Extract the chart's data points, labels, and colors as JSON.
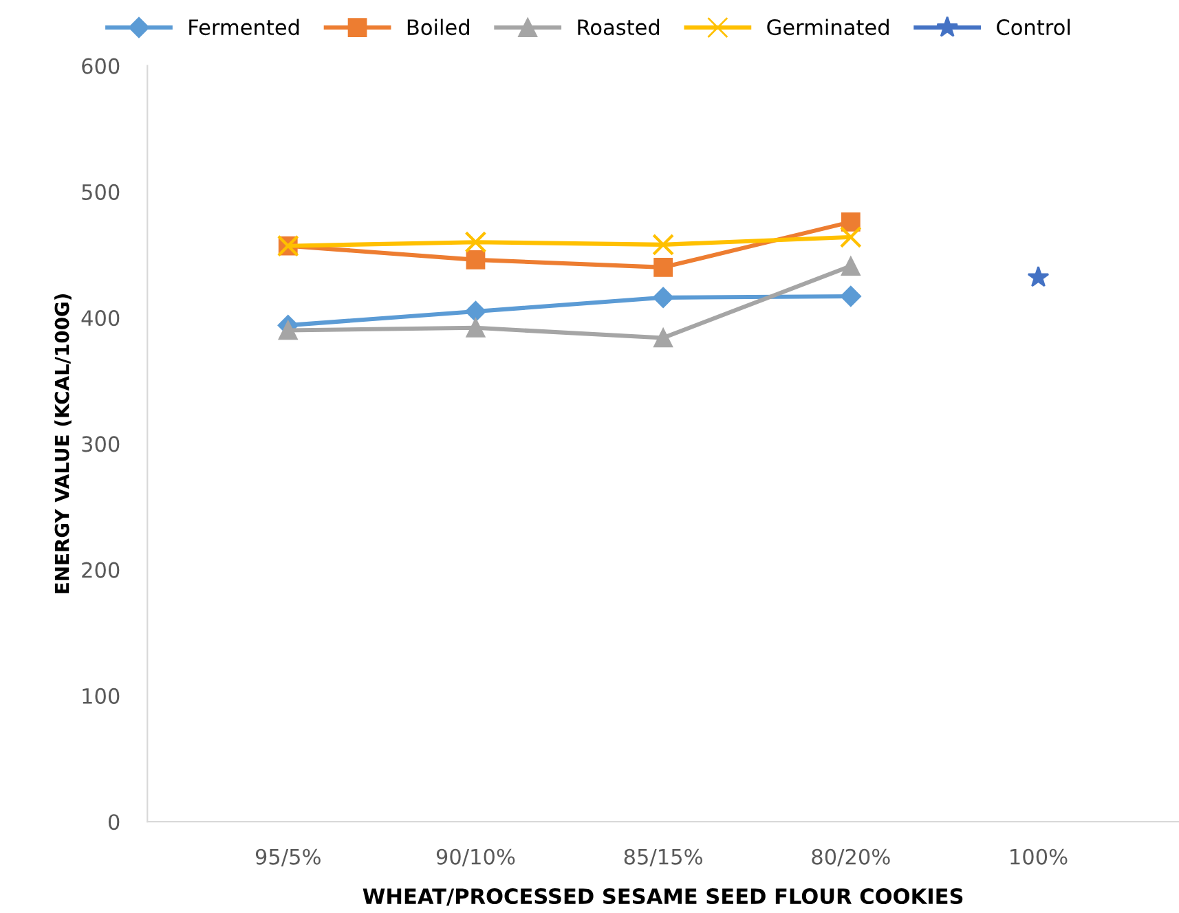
{
  "chart_data": {
    "type": "line",
    "xlabel": "WHEAT/PROCESSED SESAME SEED FLOUR COOKIES",
    "ylabel": "ENERGY VALUE (KCAL/100G)",
    "categories": [
      "95/5%",
      "90/10%",
      "85/15%",
      "80/20%",
      "100%"
    ],
    "ylim": [
      0,
      600
    ],
    "yticks": [
      0,
      100,
      200,
      300,
      400,
      500,
      600
    ],
    "grid": false,
    "legend": "top",
    "series": [
      {
        "name": "Fermented",
        "color": "#5b9bd5",
        "marker": "diamond",
        "values": [
          394,
          405,
          416,
          417,
          null
        ]
      },
      {
        "name": "Boiled",
        "color": "#ed7d31",
        "marker": "square",
        "values": [
          457,
          446,
          440,
          476,
          null
        ]
      },
      {
        "name": "Roasted",
        "color": "#a5a5a5",
        "marker": "triangle",
        "values": [
          390,
          392,
          384,
          441,
          null
        ]
      },
      {
        "name": "Germinated",
        "color": "#ffc000",
        "marker": "cross",
        "values": [
          457,
          460,
          458,
          464,
          null
        ]
      },
      {
        "name": "Control",
        "color": "#4472c4",
        "marker": "star",
        "values": [
          null,
          null,
          null,
          null,
          432
        ]
      }
    ]
  }
}
